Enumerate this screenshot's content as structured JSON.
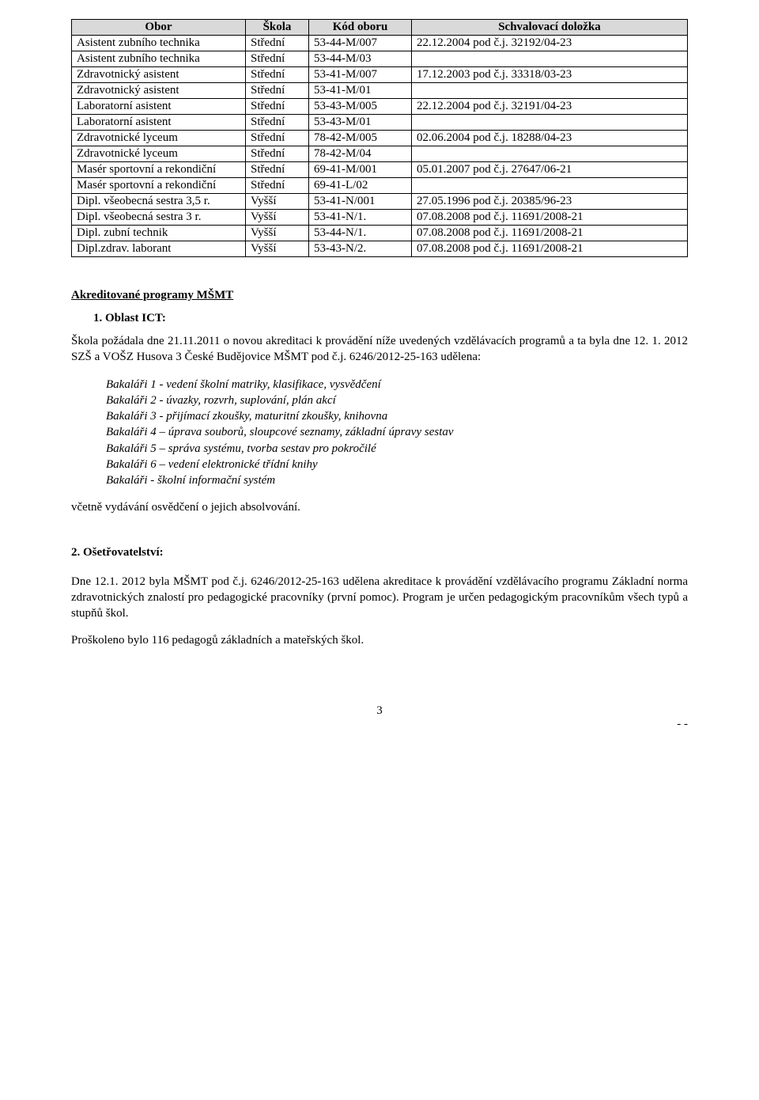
{
  "table": {
    "headers": [
      "Obor",
      "Škola",
      "Kód oboru",
      "Schvalovací doložka"
    ],
    "rows": [
      [
        "Asistent zubního technika",
        "Střední",
        "53-44-M/007",
        "22.12.2004 pod č.j. 32192/04-23"
      ],
      [
        "Asistent zubního technika",
        "Střední",
        "53-44-M/03",
        ""
      ],
      [
        "Zdravotnický asistent",
        "Střední",
        "53-41-M/007",
        "17.12.2003 pod č.j. 33318/03-23"
      ],
      [
        "Zdravotnický asistent",
        "Střední",
        "53-41-M/01",
        ""
      ],
      [
        "Laboratorní asistent",
        "Střední",
        "53-43-M/005",
        "22.12.2004 pod č.j. 32191/04-23"
      ],
      [
        "Laboratorní asistent",
        "Střední",
        "53-43-M/01",
        ""
      ],
      [
        "Zdravotnické lyceum",
        "Střední",
        "78-42-M/005",
        "02.06.2004 pod č.j. 18288/04-23"
      ],
      [
        "Zdravotnické lyceum",
        "Střední",
        "78-42-M/04",
        ""
      ],
      [
        "Masér sportovní a rekondiční",
        "Střední",
        "69-41-M/001",
        "05.01.2007 pod č.j. 27647/06-21"
      ],
      [
        "Masér sportovní a rekondiční",
        "Střední",
        "69-41-L/02",
        ""
      ],
      [
        "Dipl. všeobecná sestra 3,5 r.",
        "Vyšší",
        "53-41-N/001",
        "27.05.1996 pod č.j. 20385/96-23"
      ],
      [
        "Dipl. všeobecná sestra 3 r.",
        "Vyšší",
        "53-41-N/1.",
        "07.08.2008 pod č.j. 11691/2008-21"
      ],
      [
        "Dipl. zubní technik",
        "Vyšší",
        "53-44-N/1.",
        "07.08.2008 pod č.j. 11691/2008-21"
      ],
      [
        "Dipl.zdrav. laborant",
        "Vyšší",
        "53-43-N/2.",
        "07.08.2008 pod č.j. 11691/2008-21"
      ]
    ]
  },
  "section_title": "Akreditované programy MŠMT",
  "ict": {
    "num_label": "1. Oblast ICT:",
    "para1": "Škola požádala dne 21.11.2011 o novou akreditaci k provádění níže uvedených vzdělávacích programů a ta byla dne 12. 1. 2012 SZŠ a VOŠZ Husova 3 České Budějovice MŠMT pod č.j. 6246/2012-25-163 udělena:",
    "courses": [
      "Bakaláři 1 - vedení školní matriky, klasifikace, vysvědčení",
      "Bakaláři 2 - úvazky, rozvrh, suplování, plán akcí",
      "Bakaláři 3 - přijímací zkoušky, maturitní zkoušky, knihovna",
      "Bakaláři 4 – úprava souborů, sloupcové seznamy, základní úpravy sestav",
      "Bakaláři 5 – správa systému, tvorba sestav pro pokročilé",
      "Bakaláři 6 – vedení elektronické třídní knihy",
      "Bakaláři - školní informační systém"
    ],
    "para2": "včetně vydávání osvědčení o jejich absolvování."
  },
  "sec2": {
    "title": "2. Ošetřovatelství:",
    "para1": "Dne 12.1. 2012 byla MŠMT pod č.j. 6246/2012-25-163 udělena akreditace k provádění vzdělávacího programu Základní norma zdravotnických znalostí pro pedagogické pracovníky (první pomoc). Program je určen pedagogickým pracovníkům všech typů a stupňů škol.",
    "para2": "Proškoleno bylo 116 pedagogů základních a mateřských škol."
  },
  "footer": {
    "page": "3",
    "corner": "-  -"
  }
}
